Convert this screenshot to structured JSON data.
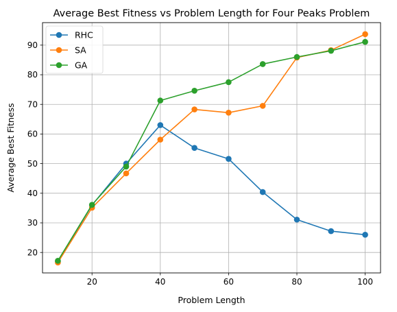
{
  "chart_data": {
    "type": "line",
    "title": "Average Best Fitness vs Problem Length for Four Peaks Problem",
    "xlabel": "Problem Length",
    "ylabel": "Average Best Fitness",
    "x": [
      10,
      20,
      30,
      40,
      50,
      60,
      70,
      80,
      90,
      100
    ],
    "xlim": [
      5.5,
      104.5
    ],
    "ylim": [
      13.1,
      97.6
    ],
    "xticks": [
      20,
      40,
      60,
      80,
      100
    ],
    "yticks": [
      20,
      30,
      40,
      50,
      60,
      70,
      80,
      90
    ],
    "grid": true,
    "legend_position": "top-left",
    "series": [
      {
        "name": "RHC",
        "color": "#1f77b4",
        "values": [
          17.0,
          36.0,
          50.0,
          63.0,
          55.3,
          51.6,
          40.4,
          31.1,
          27.2,
          26.0
        ]
      },
      {
        "name": "SA",
        "color": "#ff7f0e",
        "values": [
          16.6,
          35.1,
          46.7,
          58.1,
          68.3,
          67.2,
          69.5,
          85.8,
          88.3,
          93.7
        ]
      },
      {
        "name": "GA",
        "color": "#2ca02c",
        "values": [
          17.2,
          36.1,
          49.0,
          71.3,
          74.6,
          77.5,
          83.6,
          86.0,
          88.1,
          91.1
        ]
      }
    ]
  }
}
